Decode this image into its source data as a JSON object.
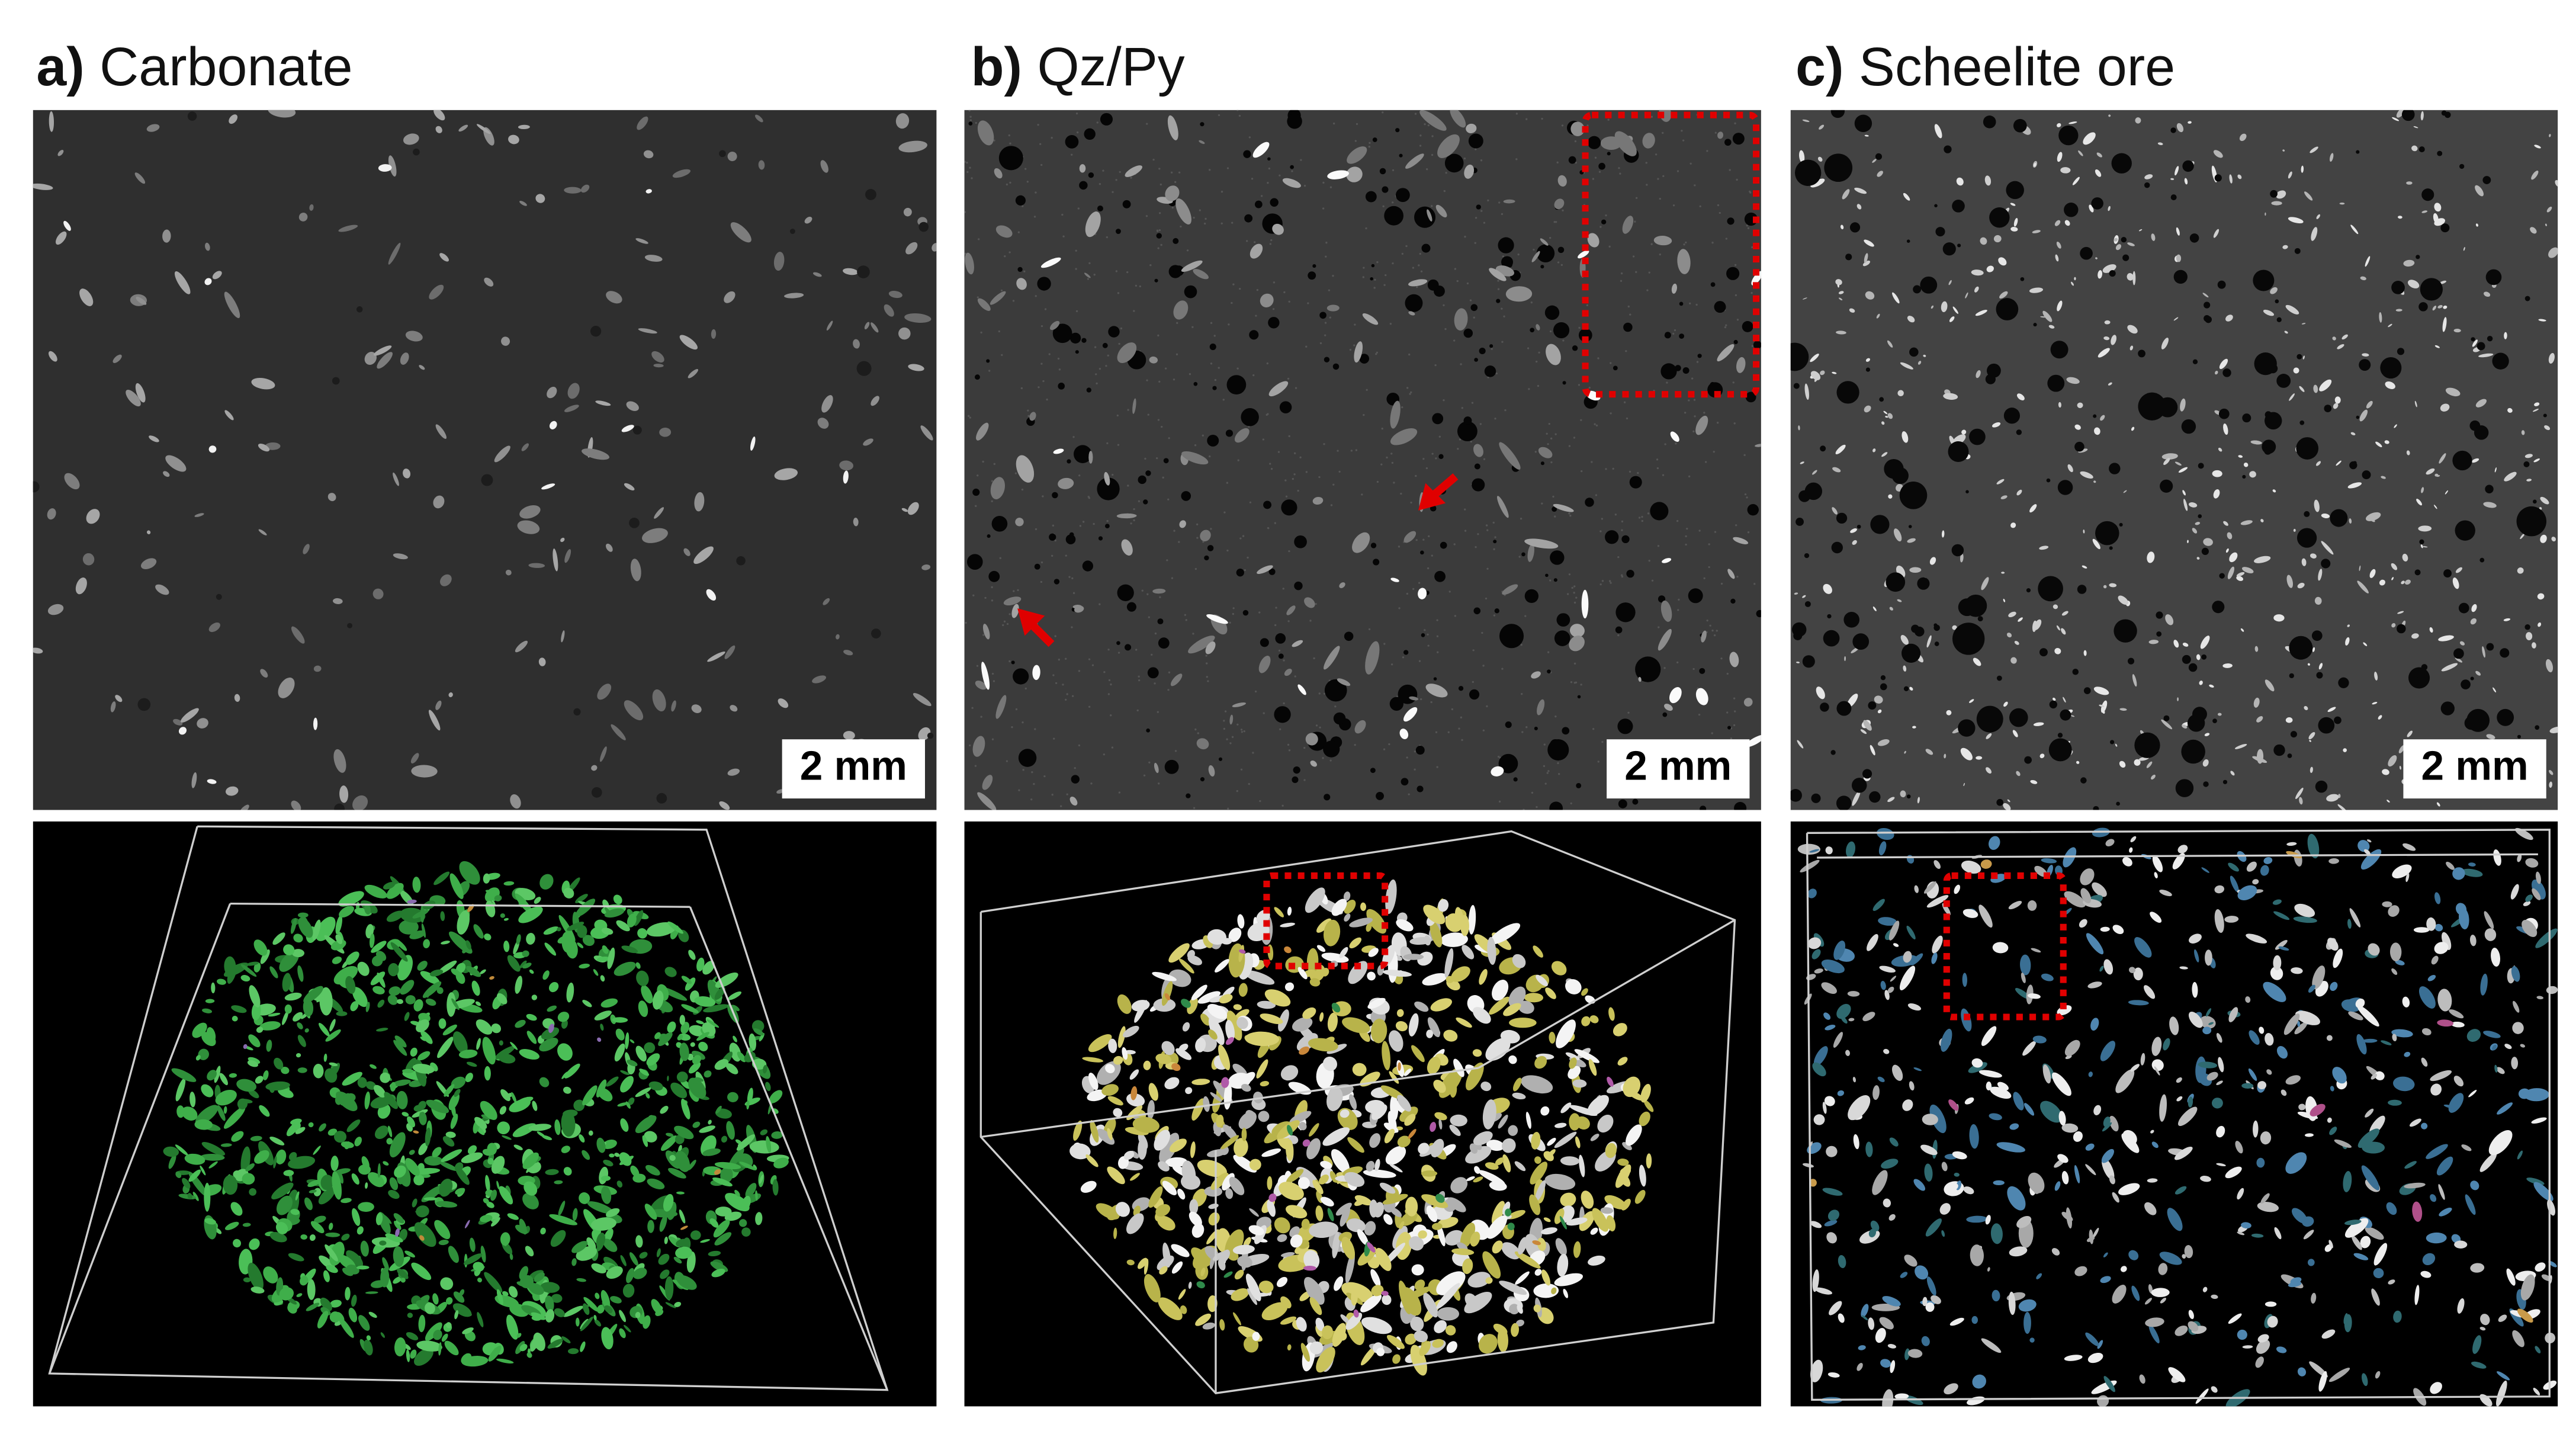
{
  "panels": [
    {
      "label": "a)",
      "title": "Carbonate",
      "scale_bar": "2 mm"
    },
    {
      "label": "b)",
      "title": "Qz/Py",
      "scale_bar": "2 mm"
    },
    {
      "label": "c)",
      "title": "Scheelite ore",
      "scale_bar": "2 mm"
    }
  ]
}
